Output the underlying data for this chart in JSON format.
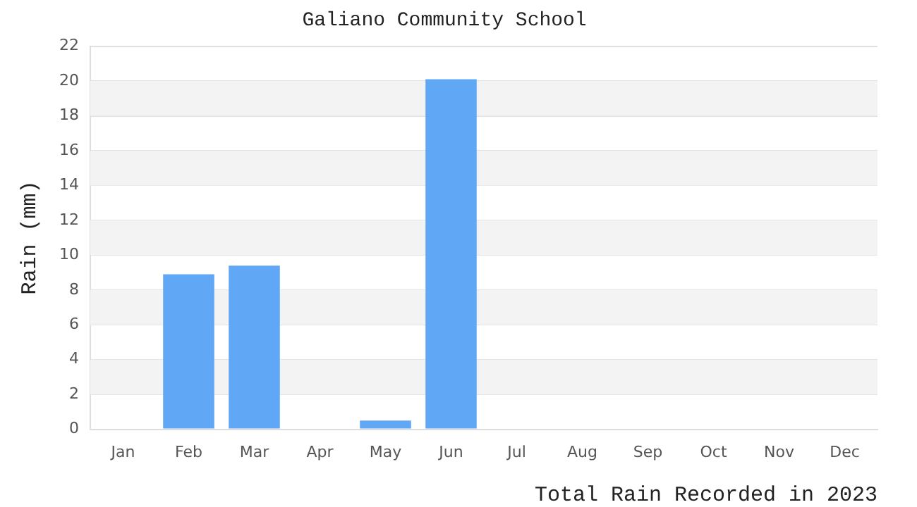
{
  "chart_data": {
    "type": "bar",
    "title": "Galiano Community School",
    "xlabel": "Total Rain Recorded in 2023",
    "ylabel": "Rain (mm)",
    "categories": [
      "Jan",
      "Feb",
      "Mar",
      "Apr",
      "May",
      "Jun",
      "Jul",
      "Aug",
      "Sep",
      "Oct",
      "Nov",
      "Dec"
    ],
    "values": [
      0,
      8.9,
      9.4,
      0,
      0.5,
      20.1,
      0,
      0,
      0,
      0,
      0,
      0
    ],
    "color": "#60a8f5",
    "ylim": [
      0,
      22
    ],
    "yticks": [
      0,
      2,
      4,
      6,
      8,
      10,
      12,
      14,
      16,
      18,
      20,
      22
    ],
    "grid": "y",
    "legend": false
  }
}
